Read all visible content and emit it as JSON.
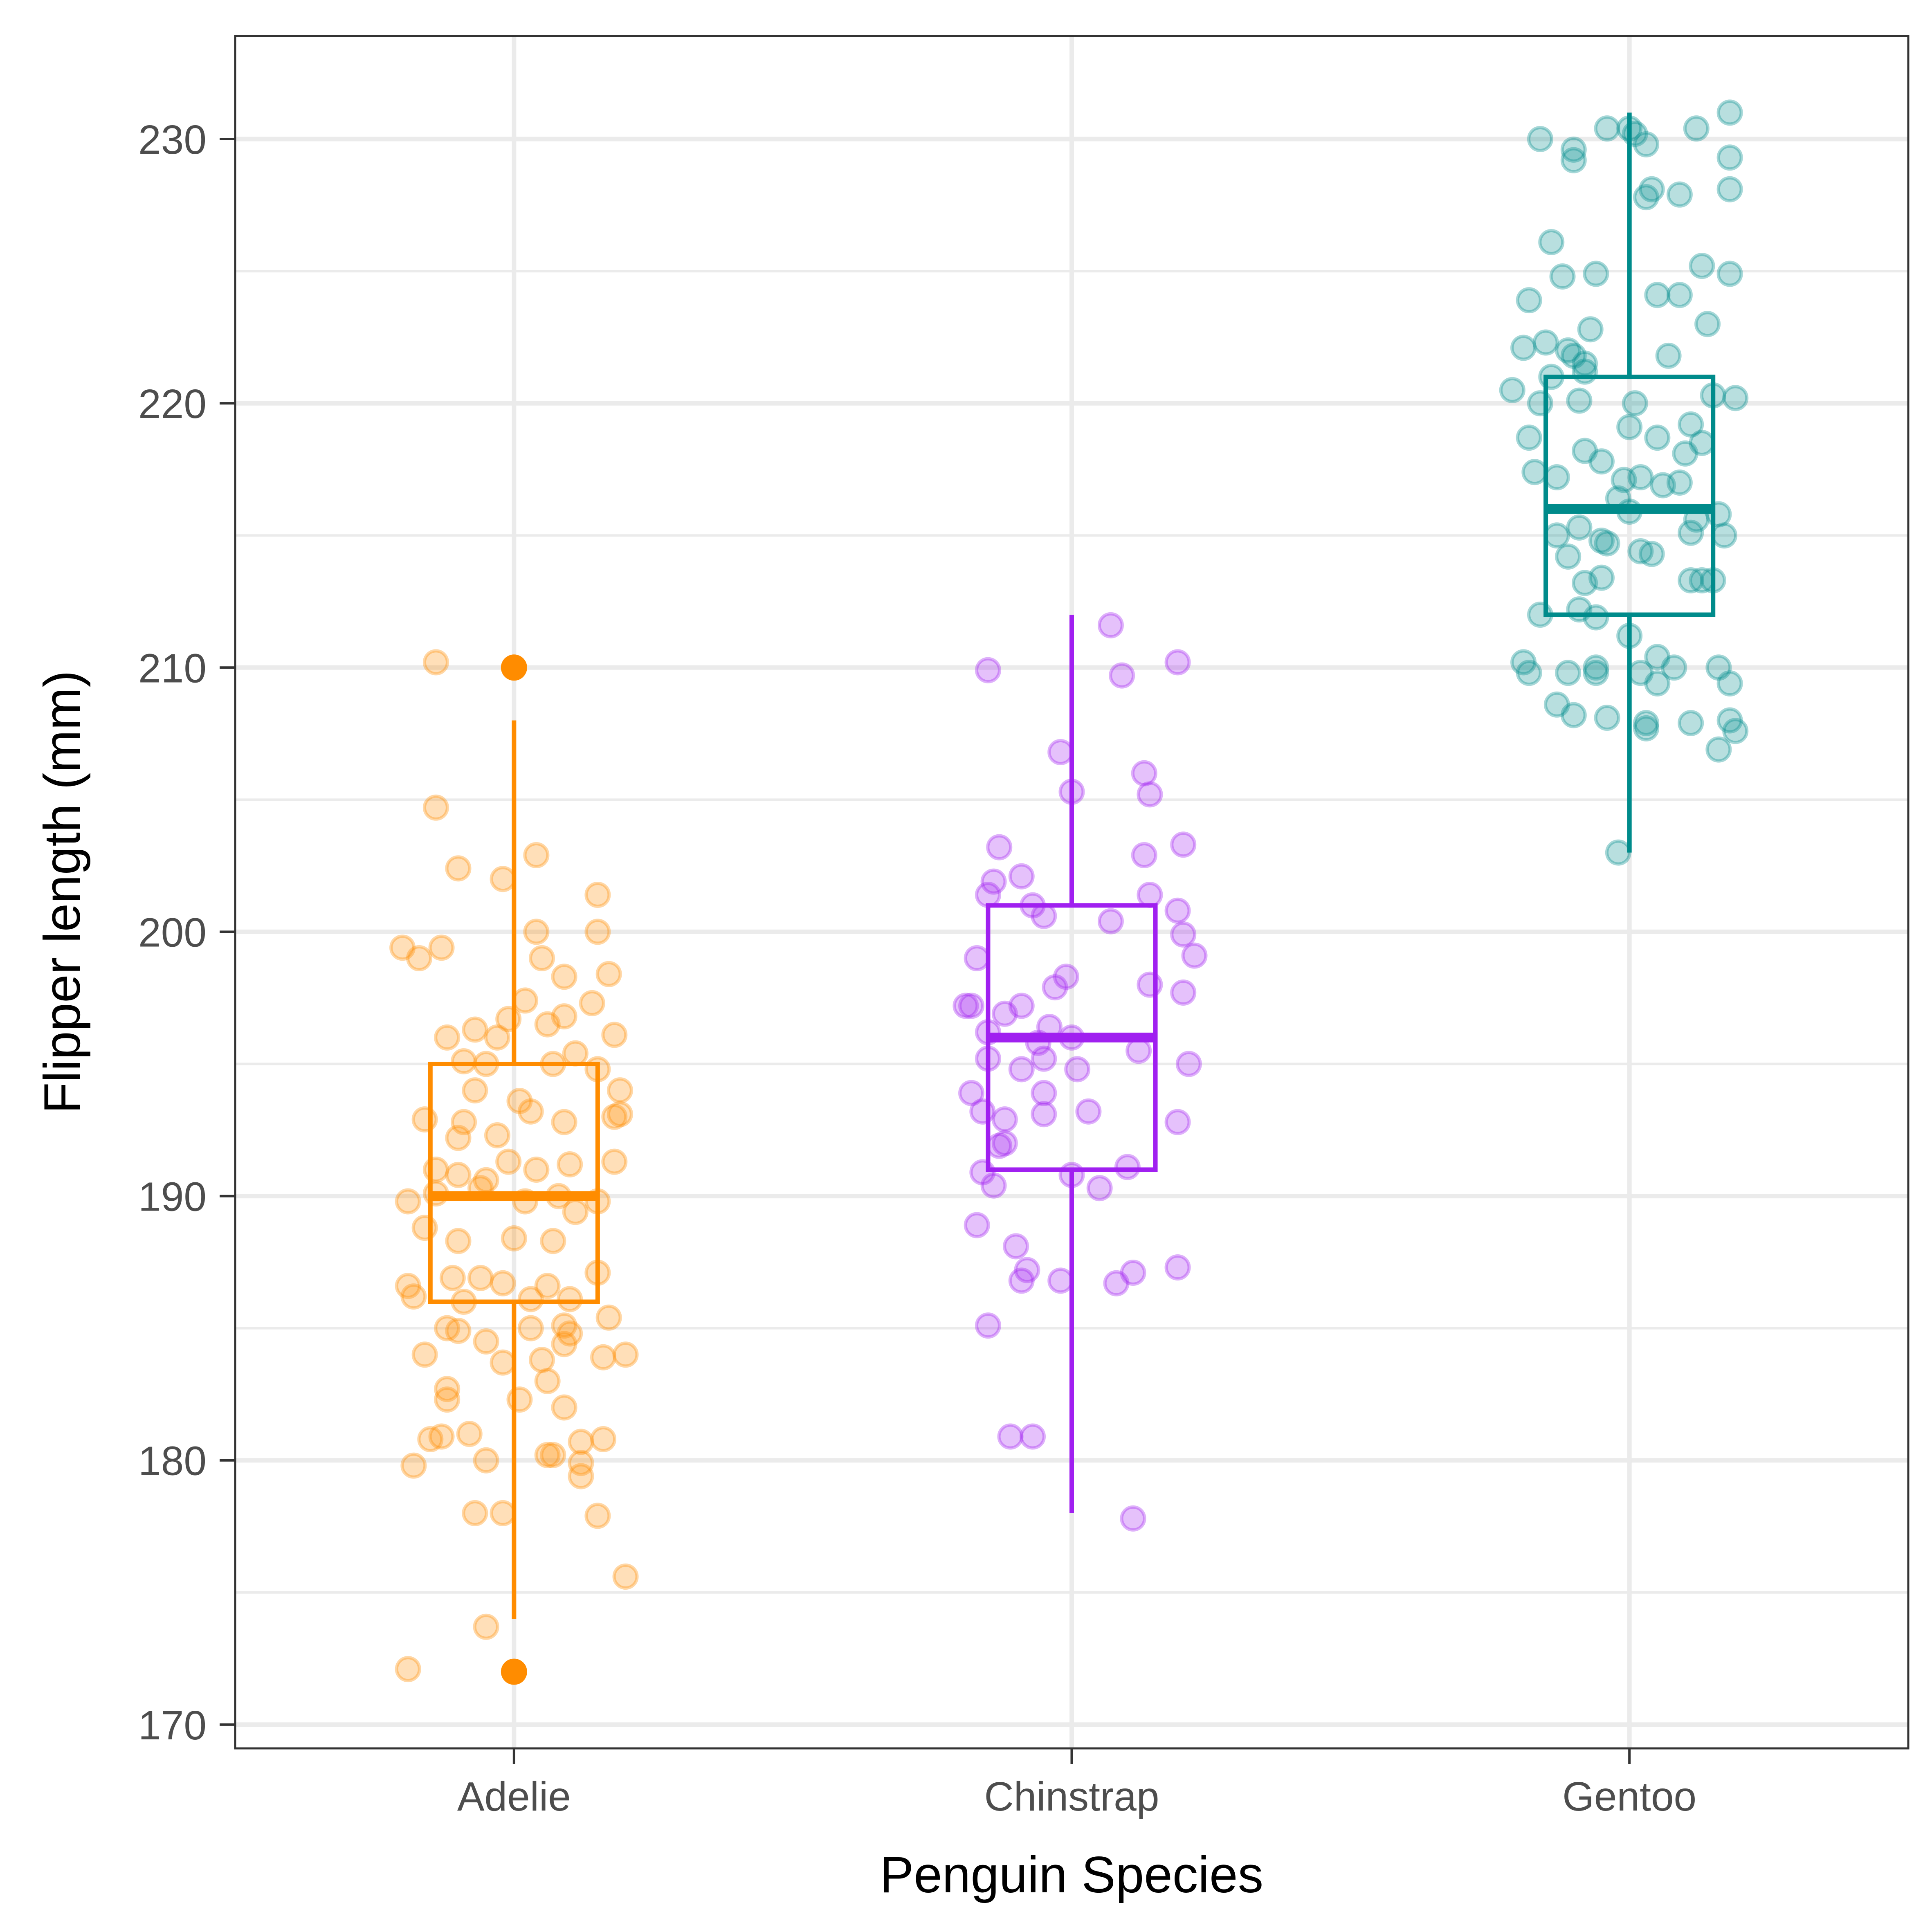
{
  "chart_data": {
    "type": "box",
    "title": "",
    "xlabel": "Penguin Species",
    "ylabel": "Flipper length (mm)",
    "ylim": [
      169.1,
      233.9
    ],
    "yticks": [
      170,
      180,
      190,
      200,
      210,
      220,
      230
    ],
    "yticks_labels": [
      "170",
      "180",
      "190",
      "200",
      "210",
      "220",
      "230"
    ],
    "grid": true,
    "legend": "none",
    "categories": [
      "Adelie",
      "Chinstrap",
      "Gentoo"
    ],
    "series": [
      {
        "category": "Adelie",
        "color": "#FF8C00",
        "box": {
          "whisker_low": 174,
          "q1": 186,
          "median": 190,
          "q3": 195,
          "whisker_high": 208
        },
        "outliers": [
          172,
          210
        ],
        "points": [
          [
            -0.19,
            172.1
          ],
          [
            -0.2,
            199.4
          ],
          [
            -0.17,
            199.0
          ],
          [
            -0.13,
            199.4
          ],
          [
            -0.14,
            210.2
          ],
          [
            -0.14,
            204.7
          ],
          [
            -0.1,
            202.4
          ],
          [
            -0.02,
            202.0
          ],
          [
            0.04,
            202.9
          ],
          [
            0.04,
            200.0
          ],
          [
            0.15,
            201.4
          ],
          [
            0.15,
            200.0
          ],
          [
            0.05,
            199.0
          ],
          [
            0.09,
            198.3
          ],
          [
            0.17,
            198.4
          ],
          [
            0.02,
            197.4
          ],
          [
            0.14,
            197.3
          ],
          [
            0.06,
            196.5
          ],
          [
            0.09,
            196.8
          ],
          [
            0.18,
            196.1
          ],
          [
            -0.01,
            196.7
          ],
          [
            -0.12,
            196.0
          ],
          [
            -0.07,
            196.3
          ],
          [
            -0.03,
            196.0
          ],
          [
            -0.09,
            195.1
          ],
          [
            -0.05,
            195.0
          ],
          [
            0.07,
            195.0
          ],
          [
            0.11,
            195.4
          ],
          [
            0.15,
            194.8
          ],
          [
            -0.07,
            194.0
          ],
          [
            0.01,
            193.6
          ],
          [
            0.19,
            194.0
          ],
          [
            0.03,
            193.2
          ],
          [
            -0.16,
            192.9
          ],
          [
            -0.09,
            192.8
          ],
          [
            -0.03,
            192.3
          ],
          [
            -0.1,
            192.2
          ],
          [
            0.09,
            192.8
          ],
          [
            0.18,
            193.0
          ],
          [
            0.19,
            193.1
          ],
          [
            -0.14,
            191.0
          ],
          [
            -0.1,
            190.8
          ],
          [
            -0.05,
            190.6
          ],
          [
            -0.01,
            191.3
          ],
          [
            0.04,
            191.0
          ],
          [
            0.1,
            191.2
          ],
          [
            0.18,
            191.3
          ],
          [
            -0.19,
            189.8
          ],
          [
            -0.14,
            190.1
          ],
          [
            -0.06,
            190.3
          ],
          [
            0.02,
            189.8
          ],
          [
            0.08,
            190.0
          ],
          [
            0.11,
            189.4
          ],
          [
            0.15,
            189.8
          ],
          [
            -0.16,
            188.8
          ],
          [
            -0.1,
            188.3
          ],
          [
            0.0,
            188.4
          ],
          [
            0.07,
            188.3
          ],
          [
            0.15,
            187.1
          ],
          [
            -0.19,
            186.6
          ],
          [
            -0.18,
            186.2
          ],
          [
            -0.11,
            186.9
          ],
          [
            -0.06,
            186.9
          ],
          [
            -0.02,
            186.7
          ],
          [
            0.06,
            186.6
          ],
          [
            0.1,
            186.1
          ],
          [
            -0.09,
            186.0
          ],
          [
            0.03,
            186.1
          ],
          [
            -0.12,
            185.0
          ],
          [
            -0.1,
            184.9
          ],
          [
            0.03,
            185.0
          ],
          [
            0.09,
            185.1
          ],
          [
            0.1,
            184.8
          ],
          [
            0.17,
            185.4
          ],
          [
            -0.16,
            184.0
          ],
          [
            -0.05,
            184.5
          ],
          [
            -0.02,
            183.7
          ],
          [
            0.05,
            183.8
          ],
          [
            0.09,
            184.4
          ],
          [
            0.16,
            183.9
          ],
          [
            0.2,
            184.0
          ],
          [
            -0.12,
            182.7
          ],
          [
            -0.12,
            182.3
          ],
          [
            0.01,
            182.3
          ],
          [
            0.06,
            183.0
          ],
          [
            0.09,
            182.0
          ],
          [
            -0.15,
            180.8
          ],
          [
            -0.13,
            180.9
          ],
          [
            -0.08,
            181.0
          ],
          [
            0.06,
            180.2
          ],
          [
            0.07,
            180.2
          ],
          [
            0.12,
            180.7
          ],
          [
            0.16,
            180.8
          ],
          [
            -0.18,
            179.8
          ],
          [
            -0.05,
            180.0
          ],
          [
            0.12,
            179.4
          ],
          [
            0.12,
            179.9
          ],
          [
            -0.07,
            178.0
          ],
          [
            -0.02,
            178.0
          ],
          [
            0.15,
            177.9
          ],
          [
            0.2,
            175.6
          ],
          [
            -0.05,
            173.7
          ]
        ]
      },
      {
        "category": "Chinstrap",
        "color": "#A020F0",
        "box": {
          "whisker_low": 178,
          "q1": 191,
          "median": 196,
          "q3": 201,
          "whisker_high": 212
        },
        "outliers": [],
        "points": [
          [
            0.07,
            211.6
          ],
          [
            0.09,
            209.7
          ],
          [
            0.19,
            210.2
          ],
          [
            -0.15,
            209.9
          ],
          [
            -0.02,
            206.8
          ],
          [
            0.13,
            206.0
          ],
          [
            0.14,
            205.2
          ],
          [
            0.0,
            205.3
          ],
          [
            0.2,
            203.3
          ],
          [
            0.13,
            202.9
          ],
          [
            -0.13,
            203.2
          ],
          [
            -0.09,
            202.1
          ],
          [
            -0.14,
            201.9
          ],
          [
            -0.15,
            201.4
          ],
          [
            -0.07,
            201.0
          ],
          [
            -0.05,
            200.6
          ],
          [
            0.07,
            200.4
          ],
          [
            0.14,
            201.4
          ],
          [
            0.19,
            200.8
          ],
          [
            0.2,
            199.9
          ],
          [
            -0.17,
            199.0
          ],
          [
            0.22,
            199.1
          ],
          [
            -0.01,
            198.3
          ],
          [
            -0.03,
            197.9
          ],
          [
            0.14,
            198.0
          ],
          [
            0.2,
            197.7
          ],
          [
            -0.19,
            197.2
          ],
          [
            -0.18,
            197.2
          ],
          [
            -0.12,
            196.9
          ],
          [
            -0.09,
            197.2
          ],
          [
            -0.15,
            196.2
          ],
          [
            -0.06,
            195.8
          ],
          [
            -0.04,
            196.4
          ],
          [
            0.0,
            196.0
          ],
          [
            -0.15,
            195.2
          ],
          [
            -0.05,
            195.2
          ],
          [
            0.12,
            195.5
          ],
          [
            0.21,
            195.0
          ],
          [
            -0.09,
            194.8
          ],
          [
            0.01,
            194.8
          ],
          [
            -0.18,
            193.9
          ],
          [
            -0.05,
            193.9
          ],
          [
            -0.16,
            193.2
          ],
          [
            -0.05,
            193.1
          ],
          [
            0.03,
            193.2
          ],
          [
            -0.12,
            192.9
          ],
          [
            -0.13,
            191.9
          ],
          [
            -0.12,
            192.0
          ],
          [
            0.19,
            192.8
          ],
          [
            -0.16,
            190.9
          ],
          [
            0.0,
            190.8
          ],
          [
            0.1,
            191.1
          ],
          [
            -0.14,
            190.4
          ],
          [
            0.05,
            190.3
          ],
          [
            -0.17,
            188.9
          ],
          [
            -0.1,
            188.1
          ],
          [
            -0.08,
            187.2
          ],
          [
            -0.09,
            186.8
          ],
          [
            -0.02,
            186.8
          ],
          [
            0.08,
            186.7
          ],
          [
            0.11,
            187.1
          ],
          [
            0.19,
            187.3
          ],
          [
            -0.15,
            185.1
          ],
          [
            -0.11,
            180.9
          ],
          [
            -0.07,
            180.9
          ],
          [
            0.11,
            177.8
          ]
        ]
      },
      {
        "category": "Gentoo",
        "color": "#008B8B",
        "box": {
          "whisker_low": 203,
          "q1": 212,
          "median": 216,
          "q3": 221,
          "whisker_high": 231
        },
        "outliers": [],
        "points": [
          [
            -0.16,
            230.0
          ],
          [
            -0.04,
            230.4
          ],
          [
            0.0,
            230.4
          ],
          [
            0.01,
            230.2
          ],
          [
            0.03,
            229.8
          ],
          [
            0.12,
            230.4
          ],
          [
            0.18,
            231.0
          ],
          [
            -0.1,
            229.6
          ],
          [
            -0.1,
            229.2
          ],
          [
            0.18,
            229.3
          ],
          [
            0.03,
            227.8
          ],
          [
            0.04,
            228.1
          ],
          [
            0.09,
            227.9
          ],
          [
            0.18,
            228.1
          ],
          [
            -0.14,
            226.1
          ],
          [
            -0.12,
            224.8
          ],
          [
            -0.06,
            224.9
          ],
          [
            0.05,
            224.1
          ],
          [
            0.09,
            224.1
          ],
          [
            0.13,
            225.2
          ],
          [
            0.18,
            224.9
          ],
          [
            -0.18,
            223.9
          ],
          [
            -0.07,
            222.8
          ],
          [
            0.14,
            223.0
          ],
          [
            -0.19,
            222.1
          ],
          [
            -0.15,
            222.3
          ],
          [
            -0.11,
            222.0
          ],
          [
            -0.1,
            221.8
          ],
          [
            -0.08,
            221.5
          ],
          [
            0.07,
            221.8
          ],
          [
            -0.14,
            221.0
          ],
          [
            -0.08,
            221.2
          ],
          [
            -0.21,
            220.5
          ],
          [
            -0.16,
            220.0
          ],
          [
            0.15,
            220.3
          ],
          [
            0.19,
            220.2
          ],
          [
            -0.09,
            220.1
          ],
          [
            0.01,
            220.0
          ],
          [
            -0.18,
            218.7
          ],
          [
            -0.08,
            218.2
          ],
          [
            0.0,
            219.1
          ],
          [
            0.05,
            218.7
          ],
          [
            0.11,
            219.2
          ],
          [
            0.13,
            218.5
          ],
          [
            0.1,
            218.1
          ],
          [
            -0.17,
            217.4
          ],
          [
            -0.13,
            217.2
          ],
          [
            -0.05,
            217.8
          ],
          [
            -0.01,
            217.1
          ],
          [
            0.02,
            217.2
          ],
          [
            0.06,
            216.9
          ],
          [
            0.09,
            217.0
          ],
          [
            -0.02,
            216.4
          ],
          [
            0.0,
            215.9
          ],
          [
            0.12,
            215.6
          ],
          [
            0.16,
            215.8
          ],
          [
            -0.13,
            215.0
          ],
          [
            -0.09,
            215.3
          ],
          [
            -0.05,
            214.8
          ],
          [
            -0.04,
            214.7
          ],
          [
            0.02,
            214.4
          ],
          [
            0.04,
            214.3
          ],
          [
            0.11,
            215.1
          ],
          [
            0.17,
            215.0
          ],
          [
            -0.11,
            214.2
          ],
          [
            -0.08,
            213.2
          ],
          [
            -0.05,
            213.4
          ],
          [
            0.11,
            213.3
          ],
          [
            0.13,
            213.3
          ],
          [
            0.15,
            213.3
          ],
          [
            -0.16,
            212.0
          ],
          [
            -0.09,
            212.2
          ],
          [
            -0.06,
            211.9
          ],
          [
            0.0,
            211.2
          ],
          [
            0.05,
            210.4
          ],
          [
            0.08,
            210.0
          ],
          [
            0.16,
            210.0
          ],
          [
            -0.19,
            210.2
          ],
          [
            -0.18,
            209.8
          ],
          [
            -0.11,
            209.8
          ],
          [
            -0.06,
            210.0
          ],
          [
            -0.06,
            209.8
          ],
          [
            0.02,
            209.8
          ],
          [
            0.05,
            209.4
          ],
          [
            0.18,
            209.4
          ],
          [
            -0.13,
            208.6
          ],
          [
            -0.1,
            208.2
          ],
          [
            -0.04,
            208.1
          ],
          [
            0.03,
            207.7
          ],
          [
            0.03,
            207.9
          ],
          [
            0.11,
            207.9
          ],
          [
            0.18,
            208.0
          ],
          [
            0.19,
            207.6
          ],
          [
            0.16,
            206.9
          ],
          [
            -0.02,
            203.0
          ]
        ]
      }
    ]
  }
}
